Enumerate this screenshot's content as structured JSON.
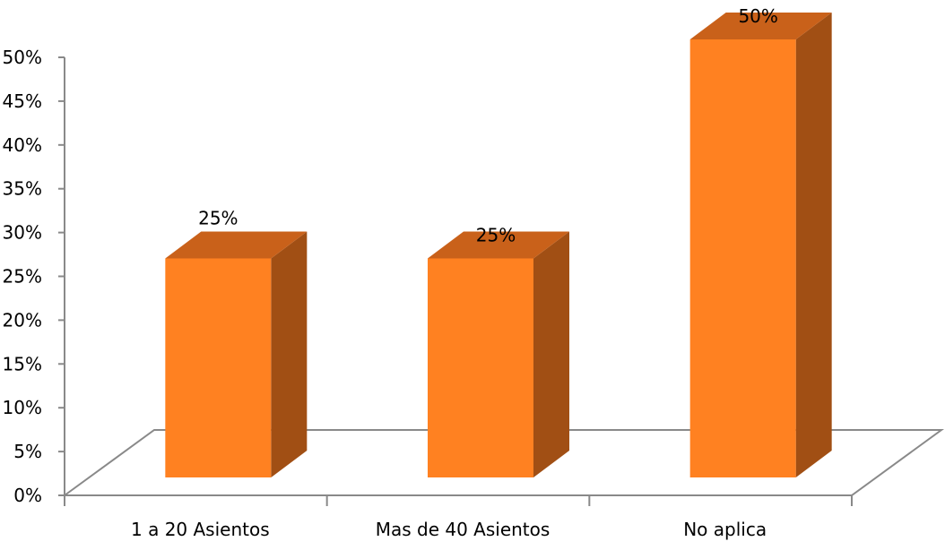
{
  "chart_data": {
    "type": "bar",
    "categories": [
      "1 a 20 Asientos",
      "Mas de 40 Asientos",
      "No aplica"
    ],
    "values": [
      25,
      25,
      50
    ],
    "data_labels": [
      "25%",
      "25%",
      "50%"
    ],
    "y_ticks": [
      "0%",
      "5%",
      "10%",
      "15%",
      "20%",
      "25%",
      "30%",
      "35%",
      "40%",
      "45%",
      "50%"
    ],
    "ylim": [
      0,
      50
    ],
    "y_unit": "%",
    "title": "",
    "xlabel": "",
    "ylabel": "",
    "grid": false,
    "legend": "none",
    "style": "3d-column",
    "colors": {
      "bar_front": "#FF8121",
      "bar_top": "#C9611A",
      "bar_side": "#A14F14",
      "axis": "#898989"
    }
  }
}
